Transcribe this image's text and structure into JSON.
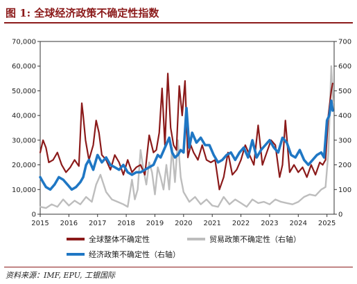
{
  "title": "图 1: 全球经济政策不确定性指数",
  "source": "资料来源：IMF, EPU, 工银国际",
  "colors": {
    "title": "#8b1a1a",
    "global": "#8b1a1a",
    "trade": "#bdbdbd",
    "economic": "#1f77c4"
  },
  "chart_data": {
    "type": "line",
    "x_ticks": [
      "2015",
      "2016",
      "2017",
      "2018",
      "2019",
      "2020",
      "2021",
      "2022",
      "2023",
      "2024",
      "2025"
    ],
    "xlim": [
      2015.0,
      2025.25
    ],
    "left_axis": {
      "ylim": [
        0,
        70000
      ],
      "ticks": [
        "0",
        "10,000",
        "20,000",
        "30,000",
        "40,000",
        "50,000",
        "60,000",
        "70,000"
      ]
    },
    "right_axis": {
      "ylim": [
        0,
        700
      ],
      "ticks": [
        "0",
        "100",
        "200",
        "300",
        "400",
        "500",
        "600",
        "700"
      ]
    },
    "grid": false,
    "legend_position": "bottom",
    "series": [
      {
        "name": "全球整体不确定性",
        "axis": "left",
        "color": "#8b1a1a",
        "x": [
          2015.0,
          2015.1,
          2015.2,
          2015.3,
          2015.45,
          2015.6,
          2015.75,
          2015.9,
          2016.05,
          2016.2,
          2016.35,
          2016.45,
          2016.5,
          2016.58,
          2016.7,
          2016.85,
          2016.95,
          2017.05,
          2017.15,
          2017.3,
          2017.45,
          2017.6,
          2017.75,
          2017.9,
          2018.05,
          2018.2,
          2018.35,
          2018.5,
          2018.65,
          2018.8,
          2018.95,
          2019.05,
          2019.15,
          2019.25,
          2019.35,
          2019.45,
          2019.55,
          2019.65,
          2019.75,
          2019.85,
          2019.95,
          2020.05,
          2020.15,
          2020.25,
          2020.35,
          2020.5,
          2020.65,
          2020.8,
          2020.95,
          2021.1,
          2021.25,
          2021.4,
          2021.55,
          2021.7,
          2021.85,
          2022.0,
          2022.15,
          2022.3,
          2022.45,
          2022.6,
          2022.75,
          2022.9,
          2023.05,
          2023.2,
          2023.35,
          2023.45,
          2023.55,
          2023.7,
          2023.85,
          2024.0,
          2024.15,
          2024.3,
          2024.45,
          2024.6,
          2024.75,
          2024.85,
          2024.95,
          2025.05,
          2025.15,
          2025.2
        ],
        "y": [
          25000,
          30000,
          27000,
          21000,
          22000,
          25000,
          20000,
          17000,
          19000,
          22000,
          19500,
          45000,
          40000,
          30000,
          22000,
          28000,
          38000,
          33000,
          24000,
          22000,
          18000,
          24000,
          21000,
          16000,
          22000,
          17000,
          19000,
          20000,
          16000,
          32000,
          25000,
          26000,
          33000,
          51000,
          28000,
          57000,
          35000,
          28000,
          26000,
          52000,
          40000,
          54000,
          23000,
          28000,
          25000,
          22000,
          28000,
          22000,
          21000,
          22000,
          10000,
          15000,
          25000,
          16000,
          18000,
          22000,
          28000,
          24000,
          20000,
          36000,
          20000,
          25000,
          30000,
          28000,
          15000,
          20000,
          38000,
          17000,
          20000,
          17000,
          19000,
          15000,
          20000,
          16000,
          21000,
          20000,
          22000,
          40000,
          50000,
          53000
        ]
      },
      {
        "name": "贸易政策不确定性（右轴）",
        "axis": "right",
        "color": "#bdbdbd",
        "x": [
          2015.0,
          2015.2,
          2015.4,
          2015.6,
          2015.8,
          2016.0,
          2016.2,
          2016.4,
          2016.6,
          2016.8,
          2016.95,
          2017.1,
          2017.3,
          2017.5,
          2017.7,
          2017.9,
          2018.05,
          2018.2,
          2018.3,
          2018.4,
          2018.5,
          2018.6,
          2018.7,
          2018.8,
          2018.9,
          2019.0,
          2019.1,
          2019.2,
          2019.3,
          2019.4,
          2019.5,
          2019.6,
          2019.7,
          2019.8,
          2019.9,
          2020.0,
          2020.2,
          2020.4,
          2020.6,
          2020.8,
          2021.0,
          2021.2,
          2021.4,
          2021.6,
          2021.8,
          2022.0,
          2022.2,
          2022.4,
          2022.6,
          2022.8,
          2023.0,
          2023.2,
          2023.4,
          2023.6,
          2023.8,
          2024.0,
          2024.2,
          2024.4,
          2024.6,
          2024.8,
          2024.95,
          2025.05,
          2025.15,
          2025.22
        ],
        "y": [
          30,
          25,
          40,
          30,
          60,
          35,
          55,
          40,
          70,
          50,
          120,
          160,
          90,
          60,
          50,
          40,
          30,
          140,
          60,
          100,
          260,
          180,
          120,
          210,
          170,
          80,
          190,
          150,
          100,
          200,
          100,
          270,
          130,
          300,
          150,
          90,
          50,
          70,
          40,
          60,
          35,
          30,
          70,
          40,
          60,
          45,
          30,
          60,
          45,
          50,
          40,
          60,
          50,
          45,
          40,
          50,
          70,
          80,
          75,
          100,
          110,
          250,
          600,
          450
        ]
      },
      {
        "name": "经济政策不确定性（右轴）",
        "axis": "right",
        "color": "#1f77c4",
        "x": [
          2015.0,
          2015.1,
          2015.2,
          2015.35,
          2015.5,
          2015.65,
          2015.8,
          2015.95,
          2016.1,
          2016.25,
          2016.4,
          2016.5,
          2016.6,
          2016.7,
          2016.85,
          2017.0,
          2017.15,
          2017.3,
          2017.45,
          2017.6,
          2017.75,
          2017.9,
          2018.05,
          2018.2,
          2018.35,
          2018.5,
          2018.65,
          2018.8,
          2018.95,
          2019.1,
          2019.2,
          2019.35,
          2019.5,
          2019.6,
          2019.7,
          2019.8,
          2019.9,
          2020.0,
          2020.1,
          2020.2,
          2020.3,
          2020.45,
          2020.6,
          2020.75,
          2020.9,
          2021.05,
          2021.2,
          2021.35,
          2021.5,
          2021.65,
          2021.8,
          2021.95,
          2022.1,
          2022.25,
          2022.4,
          2022.55,
          2022.7,
          2022.85,
          2023.0,
          2023.15,
          2023.3,
          2023.45,
          2023.6,
          2023.75,
          2023.9,
          2024.05,
          2024.2,
          2024.35,
          2024.5,
          2024.65,
          2024.8,
          2024.9,
          2025.0,
          2025.08,
          2025.15,
          2025.2
        ],
        "y": [
          150,
          130,
          110,
          100,
          120,
          150,
          140,
          120,
          100,
          110,
          130,
          150,
          200,
          220,
          180,
          240,
          210,
          230,
          200,
          190,
          180,
          200,
          170,
          160,
          170,
          170,
          180,
          190,
          200,
          240,
          230,
          270,
          310,
          250,
          230,
          240,
          260,
          250,
          430,
          270,
          330,
          290,
          310,
          280,
          280,
          240,
          210,
          220,
          240,
          250,
          220,
          250,
          270,
          230,
          300,
          230,
          260,
          280,
          300,
          270,
          250,
          310,
          290,
          240,
          230,
          260,
          220,
          200,
          220,
          240,
          250,
          230,
          380,
          400,
          460,
          420
        ]
      }
    ]
  }
}
